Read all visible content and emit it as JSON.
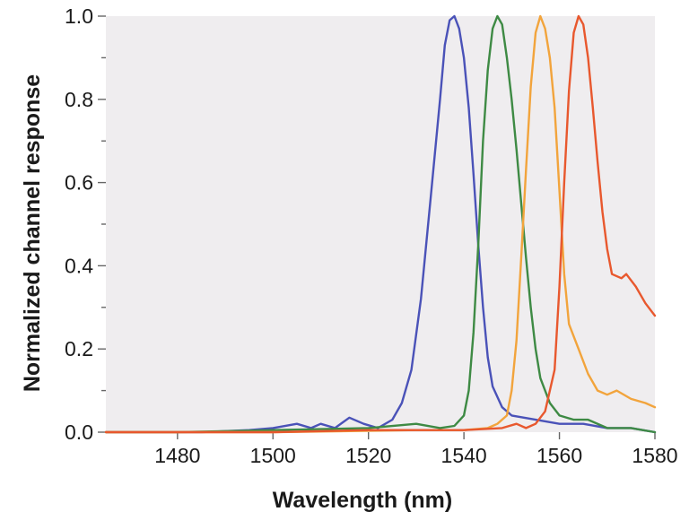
{
  "chart_data": {
    "type": "line",
    "title": "",
    "xlabel": "Wavelength (nm)",
    "ylabel": "Normalized channel response",
    "xlim": [
      1465,
      1580
    ],
    "ylim": [
      0.0,
      1.0
    ],
    "x_ticks": [
      1480,
      1500,
      1520,
      1540,
      1560,
      1580
    ],
    "y_ticks": [
      0.0,
      0.2,
      0.4,
      0.6,
      0.8,
      1.0
    ],
    "y_tick_labels": [
      "0.0",
      "0.2",
      "0.4",
      "0.6",
      "0.8",
      "1.0"
    ],
    "y_minor_ticks": [
      0.1,
      0.3,
      0.5,
      0.7,
      0.9
    ],
    "grid": false,
    "plot_background": "#efedef",
    "legend": "none",
    "series": [
      {
        "color": "#4a52b8",
        "points": [
          [
            1465,
            0.0
          ],
          [
            1475,
            0.0
          ],
          [
            1485,
            0.0
          ],
          [
            1495,
            0.005
          ],
          [
            1500,
            0.01
          ],
          [
            1505,
            0.02
          ],
          [
            1508,
            0.01
          ],
          [
            1510,
            0.02
          ],
          [
            1513,
            0.01
          ],
          [
            1516,
            0.035
          ],
          [
            1519,
            0.02
          ],
          [
            1522,
            0.01
          ],
          [
            1525,
            0.03
          ],
          [
            1527,
            0.07
          ],
          [
            1529,
            0.15
          ],
          [
            1531,
            0.32
          ],
          [
            1533,
            0.56
          ],
          [
            1535,
            0.8
          ],
          [
            1536,
            0.93
          ],
          [
            1537,
            0.99
          ],
          [
            1538,
            1.0
          ],
          [
            1539,
            0.97
          ],
          [
            1540,
            0.9
          ],
          [
            1541,
            0.78
          ],
          [
            1542,
            0.62
          ],
          [
            1543,
            0.45
          ],
          [
            1544,
            0.3
          ],
          [
            1545,
            0.18
          ],
          [
            1546,
            0.11
          ],
          [
            1548,
            0.06
          ],
          [
            1550,
            0.04
          ],
          [
            1555,
            0.03
          ],
          [
            1560,
            0.02
          ],
          [
            1565,
            0.02
          ],
          [
            1570,
            0.01
          ],
          [
            1575,
            0.01
          ],
          [
            1580,
            0.0
          ]
        ]
      },
      {
        "color": "#3e8a44",
        "points": [
          [
            1465,
            0.0
          ],
          [
            1480,
            0.0
          ],
          [
            1500,
            0.005
          ],
          [
            1520,
            0.01
          ],
          [
            1530,
            0.02
          ],
          [
            1535,
            0.01
          ],
          [
            1538,
            0.015
          ],
          [
            1540,
            0.04
          ],
          [
            1541,
            0.1
          ],
          [
            1542,
            0.24
          ],
          [
            1543,
            0.45
          ],
          [
            1544,
            0.7
          ],
          [
            1545,
            0.87
          ],
          [
            1546,
            0.97
          ],
          [
            1547,
            1.0
          ],
          [
            1548,
            0.98
          ],
          [
            1549,
            0.9
          ],
          [
            1550,
            0.8
          ],
          [
            1551,
            0.68
          ],
          [
            1552,
            0.55
          ],
          [
            1553,
            0.42
          ],
          [
            1554,
            0.3
          ],
          [
            1555,
            0.2
          ],
          [
            1556,
            0.13
          ],
          [
            1558,
            0.07
          ],
          [
            1560,
            0.04
          ],
          [
            1563,
            0.03
          ],
          [
            1566,
            0.03
          ],
          [
            1570,
            0.01
          ],
          [
            1575,
            0.01
          ],
          [
            1580,
            0.0
          ]
        ]
      },
      {
        "color": "#f2a43c",
        "points": [
          [
            1465,
            0.0
          ],
          [
            1500,
            0.0
          ],
          [
            1530,
            0.005
          ],
          [
            1540,
            0.005
          ],
          [
            1545,
            0.01
          ],
          [
            1547,
            0.02
          ],
          [
            1549,
            0.04
          ],
          [
            1550,
            0.1
          ],
          [
            1551,
            0.22
          ],
          [
            1552,
            0.42
          ],
          [
            1553,
            0.63
          ],
          [
            1554,
            0.83
          ],
          [
            1555,
            0.96
          ],
          [
            1556,
            1.0
          ],
          [
            1557,
            0.97
          ],
          [
            1558,
            0.9
          ],
          [
            1559,
            0.78
          ],
          [
            1560,
            0.58
          ],
          [
            1561,
            0.38
          ],
          [
            1562,
            0.26
          ],
          [
            1564,
            0.2
          ],
          [
            1566,
            0.14
          ],
          [
            1568,
            0.1
          ],
          [
            1570,
            0.09
          ],
          [
            1572,
            0.1
          ],
          [
            1575,
            0.08
          ],
          [
            1578,
            0.07
          ],
          [
            1580,
            0.06
          ]
        ]
      },
      {
        "color": "#e8582e",
        "points": [
          [
            1465,
            0.0
          ],
          [
            1480,
            0.0
          ],
          [
            1500,
            0.0
          ],
          [
            1520,
            0.005
          ],
          [
            1540,
            0.005
          ],
          [
            1548,
            0.01
          ],
          [
            1551,
            0.02
          ],
          [
            1553,
            0.01
          ],
          [
            1555,
            0.02
          ],
          [
            1557,
            0.05
          ],
          [
            1559,
            0.15
          ],
          [
            1560,
            0.35
          ],
          [
            1561,
            0.6
          ],
          [
            1562,
            0.82
          ],
          [
            1563,
            0.96
          ],
          [
            1564,
            1.0
          ],
          [
            1565,
            0.98
          ],
          [
            1566,
            0.9
          ],
          [
            1567,
            0.78
          ],
          [
            1568,
            0.65
          ],
          [
            1569,
            0.53
          ],
          [
            1570,
            0.44
          ],
          [
            1571,
            0.38
          ],
          [
            1573,
            0.37
          ],
          [
            1574,
            0.38
          ],
          [
            1576,
            0.35
          ],
          [
            1578,
            0.31
          ],
          [
            1580,
            0.28
          ]
        ]
      }
    ]
  }
}
